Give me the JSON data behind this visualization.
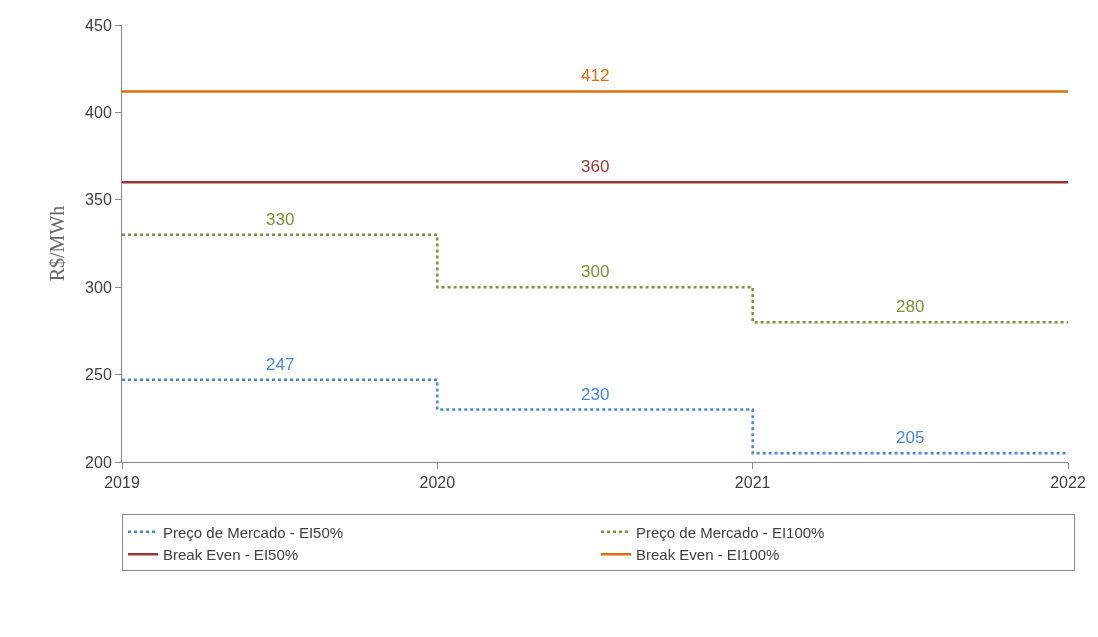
{
  "chart_data": {
    "type": "step",
    "ylabel": "R$/MWh",
    "x": [
      2019,
      2020,
      2021,
      2022
    ],
    "xlim": [
      2019,
      2022
    ],
    "xticks": [
      2019,
      2020,
      2021,
      2022
    ],
    "ylim": [
      200,
      450
    ],
    "yticks": [
      200,
      250,
      300,
      350,
      400,
      450
    ],
    "legend": "bottom",
    "line_style": "dotted",
    "series": [
      {
        "name": "Preço de Mercado - EI50%",
        "color": "#4a86d4",
        "values": [
          247,
          230,
          205,
          205
        ]
      },
      {
        "name": "Preço de Mercado - EI100%",
        "color": "#77933c",
        "values": [
          330,
          300,
          280,
          280
        ]
      },
      {
        "name": "Break Even - EI50%",
        "color": "#953735",
        "type": "line",
        "line_style": "solid",
        "values": [
          360,
          360,
          360,
          360
        ]
      },
      {
        "name": "Break Even - EI100%",
        "color": "#e46c0a",
        "type": "line",
        "line_style": "solid",
        "values": [
          412,
          412,
          412,
          412
        ]
      }
    ],
    "annotations": [
      {
        "text": "247",
        "x": 2019.5,
        "y": 247
      },
      {
        "text": "230",
        "x": 2020.5,
        "y": 230
      },
      {
        "text": "205",
        "x": 2021.5,
        "y": 205
      },
      {
        "text": "330",
        "x": 2019.5,
        "y": 330
      },
      {
        "text": "300",
        "x": 2020.5,
        "y": 300
      },
      {
        "text": "280",
        "x": 2021.5,
        "y": 280
      },
      {
        "text": "360",
        "x": 2020.5,
        "y": 360
      },
      {
        "text": "412",
        "x": 2020.5,
        "y": 412
      }
    ]
  }
}
